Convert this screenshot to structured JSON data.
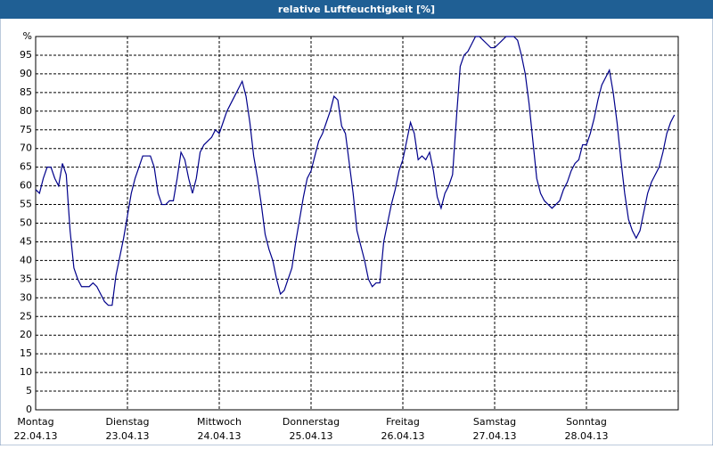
{
  "chart_data": {
    "type": "line",
    "title": "relative Luftfeuchtigkeit [%]",
    "x": [
      0,
      1,
      2,
      3,
      4,
      5,
      6,
      7,
      8,
      9,
      10,
      11,
      12,
      13,
      14,
      15,
      16,
      17,
      18,
      19,
      20,
      21,
      22,
      23,
      24,
      25,
      26,
      27,
      28,
      29,
      30,
      31,
      32,
      33,
      34,
      35,
      36,
      37,
      38,
      39,
      40,
      41,
      42,
      43,
      44,
      45,
      46,
      47,
      48,
      49,
      50,
      51,
      52,
      53,
      54,
      55,
      56,
      57,
      58,
      59,
      60,
      61,
      62,
      63,
      64,
      65,
      66,
      67,
      68,
      69,
      70,
      71,
      72,
      73,
      74,
      75,
      76,
      77,
      78,
      79,
      80,
      81,
      82,
      83,
      84,
      85,
      86,
      87,
      88,
      89,
      90,
      91,
      92,
      93,
      94,
      95,
      96,
      97,
      98,
      99,
      100,
      101,
      102,
      103,
      104,
      105,
      106,
      107,
      108,
      109,
      110,
      111,
      112,
      113,
      114,
      115,
      116,
      117,
      118,
      119,
      120,
      121,
      122,
      123,
      124,
      125,
      126,
      127,
      128,
      129,
      130,
      131,
      132,
      133,
      134,
      135,
      136,
      137,
      138,
      139,
      140,
      141,
      142,
      143,
      144,
      145,
      146,
      147,
      148,
      149,
      150,
      151,
      152,
      153,
      154,
      155,
      156,
      157,
      158,
      159,
      160,
      161,
      162,
      163,
      164,
      165,
      166,
      167
    ],
    "series": [
      {
        "color": "#00008b",
        "values": [
          59,
          58,
          62,
          65,
          65,
          62,
          60,
          66,
          63,
          48,
          38,
          35,
          33,
          33,
          33,
          34,
          33,
          31,
          29,
          28,
          28,
          36,
          41,
          46,
          52,
          58,
          62,
          65,
          68,
          68,
          68,
          65,
          58,
          55,
          55,
          56,
          56,
          62,
          69,
          67,
          62,
          58,
          62,
          69,
          71,
          72,
          73,
          75,
          74,
          77,
          80,
          82,
          84,
          86,
          88,
          84,
          77,
          68,
          62,
          55,
          47,
          43,
          40,
          35,
          31,
          32,
          35,
          38,
          45,
          51,
          57,
          62,
          64,
          68,
          72,
          74,
          77,
          80,
          84,
          83,
          76,
          74,
          66,
          58,
          48,
          44,
          40,
          35,
          33,
          34,
          34,
          45,
          50,
          55,
          59,
          64,
          67,
          72,
          77,
          74,
          67,
          68,
          67,
          69,
          64,
          57,
          54,
          58,
          60,
          63,
          78,
          92,
          95,
          96,
          98,
          100,
          100,
          99,
          98,
          97,
          97,
          98,
          99,
          100,
          100,
          100,
          99,
          95,
          90,
          82,
          72,
          62,
          58,
          56,
          55,
          54,
          55,
          56,
          59,
          61,
          64,
          66,
          67,
          71,
          71,
          74,
          78,
          83,
          87,
          89,
          91,
          85,
          77,
          67,
          58,
          51,
          48,
          46,
          48,
          53,
          58,
          61,
          63,
          65,
          69,
          74,
          77,
          79
        ]
      }
    ],
    "xlim": [
      0,
      168
    ],
    "xticks": [
      {
        "value": 0,
        "label": "Montag"
      },
      {
        "value": 24,
        "label": "Dienstag"
      },
      {
        "value": 48,
        "label": "Mittwoch"
      },
      {
        "value": 72,
        "label": "Donnerstag"
      },
      {
        "value": 96,
        "label": "Freitag"
      },
      {
        "value": 120,
        "label": "Samstag"
      },
      {
        "value": 144,
        "label": "Sonntag"
      }
    ],
    "xtick_dates": [
      "22.04.13",
      "23.04.13",
      "24.04.13",
      "25.04.13",
      "26.04.13",
      "27.04.13",
      "28.04.13"
    ],
    "ylim": [
      0,
      100
    ],
    "yticks": [
      0,
      5,
      10,
      15,
      20,
      25,
      30,
      35,
      40,
      45,
      50,
      55,
      60,
      65,
      70,
      75,
      80,
      85,
      90,
      95,
      {
        "value": 100,
        "label": "%"
      }
    ],
    "grid": true
  }
}
